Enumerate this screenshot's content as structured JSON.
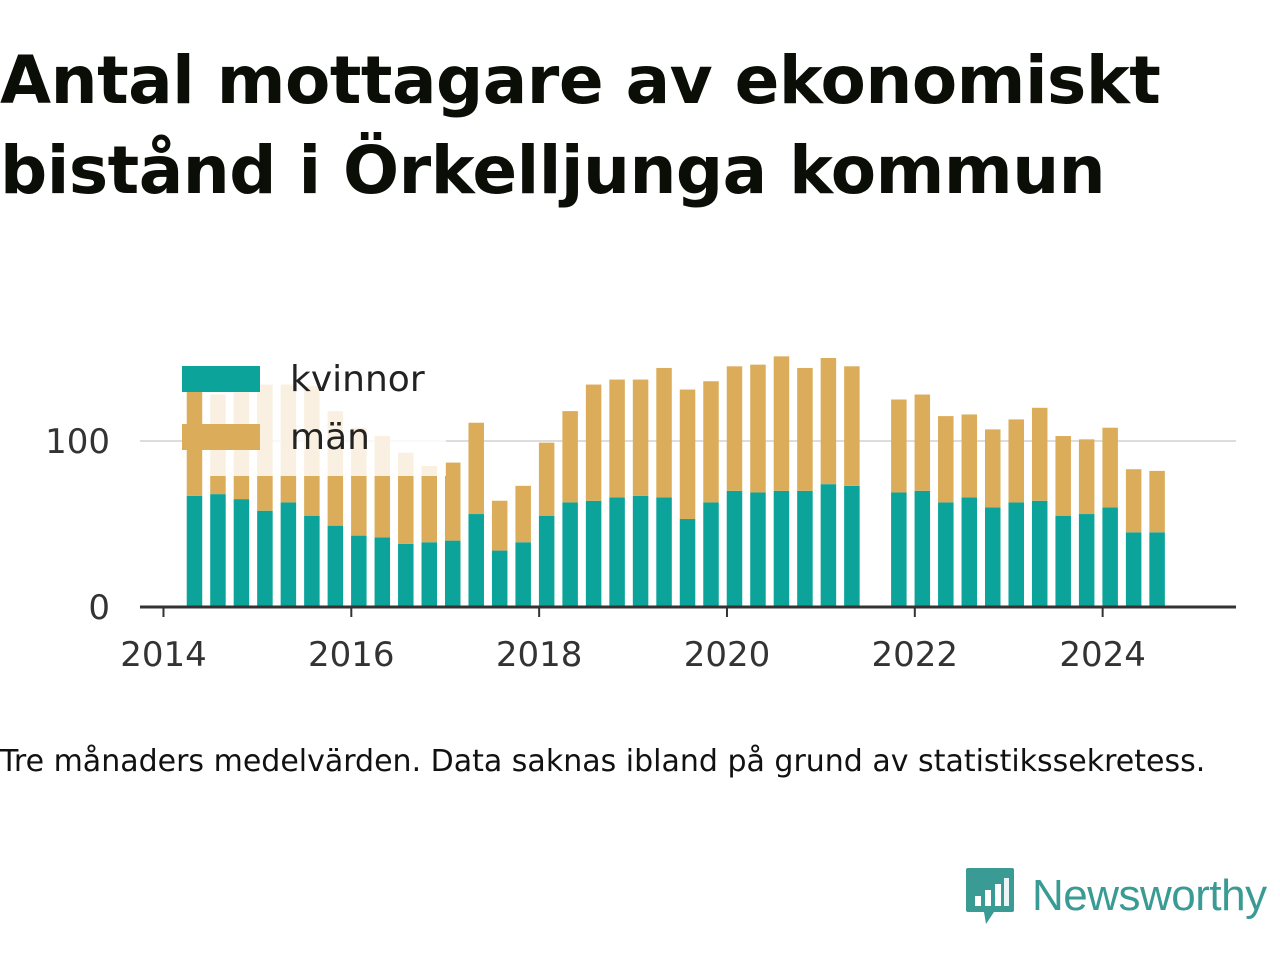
{
  "title": "Antal mottagare av ekonomiskt bistånd i Örkelljunga kommun",
  "note": "Tre månaders medelvärden. Data saknas ibland på grund av statistikssekretess.",
  "brand": {
    "name": "Newsworthy",
    "icon": "newsworthy-bar-chart-icon",
    "color": "#3a9a94"
  },
  "colors": {
    "kvinnor": "#0ca39a",
    "man": "#dbad5b",
    "grid": "#dddddd",
    "axis": "#333333"
  },
  "chart_data": {
    "type": "bar",
    "stacked": true,
    "title": "Antal mottagare av ekonomiskt bistånd i Örkelljunga kommun",
    "xlabel": "",
    "ylabel": "",
    "xlim": [
      2013.75,
      2025.42
    ],
    "ylim": [
      0,
      155
    ],
    "x_ticks": [
      "2014",
      "2016",
      "2018",
      "2020",
      "2022",
      "2024"
    ],
    "y_ticks": [
      "0",
      "100"
    ],
    "grid": "horizontal",
    "legend_position": "top-left",
    "x": [
      2014.33,
      2014.58,
      2014.83,
      2015.08,
      2015.33,
      2015.58,
      2015.83,
      2016.08,
      2016.33,
      2016.58,
      2016.83,
      2017.08,
      2017.33,
      2017.58,
      2017.83,
      2018.08,
      2018.33,
      2018.58,
      2018.83,
      2019.08,
      2019.33,
      2019.58,
      2019.83,
      2020.08,
      2020.33,
      2020.58,
      2020.83,
      2021.08,
      2021.33,
      2021.83,
      2022.08,
      2022.33,
      2022.58,
      2022.83,
      2023.08,
      2023.33,
      2023.58,
      2023.83,
      2024.08,
      2024.33,
      2024.58
    ],
    "series": [
      {
        "name": "kvinnor",
        "values": [
          67,
          68,
          65,
          58,
          63,
          55,
          49,
          43,
          42,
          38,
          39,
          40,
          56,
          34,
          39,
          55,
          63,
          64,
          66,
          67,
          66,
          53,
          63,
          70,
          69,
          70,
          70,
          74,
          73,
          69,
          70,
          63,
          66,
          60,
          63,
          64,
          55,
          56,
          60,
          45,
          45
        ]
      },
      {
        "name": "män",
        "values": [
          67,
          60,
          68,
          76,
          71,
          78,
          69,
          65,
          61,
          55,
          46,
          47,
          55,
          30,
          34,
          44,
          55,
          70,
          71,
          70,
          78,
          78,
          73,
          75,
          77,
          81,
          74,
          76,
          72,
          56,
          58,
          52,
          50,
          47,
          50,
          56,
          48,
          45,
          48,
          38,
          37
        ]
      }
    ]
  }
}
